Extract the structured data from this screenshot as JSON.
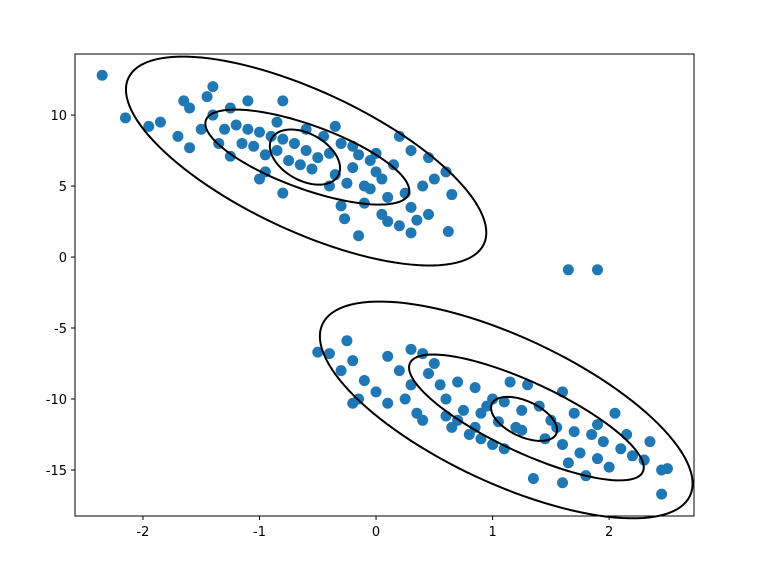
{
  "chart_data": {
    "type": "scatter",
    "xlim": [
      -2.583,
      2.728
    ],
    "ylim": [
      -18.24,
      14.3
    ],
    "xticks": [
      -2,
      -1,
      0,
      1,
      2
    ],
    "yticks": [
      10,
      5,
      0,
      -5,
      -10,
      -15
    ],
    "color": "#1f77b4",
    "x": [
      -2.35,
      -2.15,
      -1.95,
      -1.85,
      -1.6,
      -1.65,
      -1.4,
      -1.45,
      -1.1,
      -0.8,
      -1.5,
      -1.7,
      -1.6,
      -1.25,
      -1.0,
      -0.95,
      -0.8,
      -0.4,
      -0.3,
      -0.27,
      -0.15,
      0.1,
      0.2,
      0.3,
      0.35,
      0.45,
      0.65,
      0.6,
      0.5,
      0.4,
      0.62,
      0.2,
      0.3,
      0.45,
      0.15,
      0.0,
      -0.1,
      -0.2,
      -0.5,
      -0.6,
      -0.7,
      -0.8,
      -0.9,
      -1.0,
      -1.1,
      -1.2,
      -1.3,
      -1.35,
      -1.15,
      -0.95,
      -0.75,
      -0.55,
      -0.35,
      -0.25,
      -0.05,
      0.1,
      0.25,
      -0.45,
      -0.3,
      -0.15,
      -0.05,
      0.05,
      -0.6,
      -0.35,
      -0.85,
      -1.25,
      -1.4,
      -0.65,
      -0.85,
      -1.05,
      -0.4,
      -0.2,
      0.0,
      -0.1,
      0.3,
      0.05,
      1.65,
      1.9,
      -0.5,
      -0.4,
      -0.25,
      -0.2,
      -0.3,
      -0.1,
      -0.15,
      -0.2,
      0.0,
      0.1,
      0.25,
      0.2,
      0.1,
      0.3,
      0.4,
      0.5,
      0.55,
      0.35,
      0.4,
      0.6,
      0.65,
      0.8,
      0.9,
      1.0,
      1.1,
      1.25,
      1.35,
      1.6,
      1.8,
      2.0,
      2.3,
      2.35,
      2.45,
      2.5,
      2.45,
      2.2,
      2.1,
      1.95,
      1.85,
      2.05,
      1.9,
      1.7,
      1.5,
      1.4,
      1.3,
      1.15,
      1.6,
      1.0,
      0.85,
      0.7,
      0.6,
      0.75,
      0.9,
      1.05,
      1.2,
      1.45,
      1.6,
      1.75,
      1.9,
      2.15,
      0.45,
      0.3,
      0.95,
      1.1,
      1.25,
      1.55,
      1.7,
      0.85,
      0.7,
      1.65
    ],
    "y": [
      12.8,
      9.8,
      9.2,
      9.5,
      10.5,
      11.0,
      12.0,
      11.3,
      11.0,
      11.0,
      9.0,
      8.5,
      7.7,
      7.1,
      5.5,
      6.0,
      4.5,
      5.0,
      3.6,
      2.7,
      1.5,
      2.5,
      2.2,
      1.7,
      2.6,
      3.0,
      4.4,
      6.0,
      5.5,
      5.0,
      1.8,
      8.5,
      7.5,
      7.0,
      6.5,
      6.0,
      5.0,
      6.3,
      7.0,
      7.5,
      8.0,
      8.3,
      8.5,
      8.8,
      9.0,
      9.3,
      9.0,
      8.0,
      8.0,
      7.2,
      6.8,
      6.2,
      5.8,
      5.2,
      4.8,
      4.2,
      4.5,
      8.5,
      8.0,
      7.2,
      6.8,
      5.5,
      9.0,
      9.2,
      9.5,
      10.5,
      10.0,
      6.5,
      7.5,
      7.8,
      7.3,
      7.8,
      7.3,
      3.8,
      3.5,
      3.0,
      -0.9,
      -0.9,
      -6.7,
      -6.8,
      -5.9,
      -7.3,
      -8.0,
      -8.7,
      -10.0,
      -10.3,
      -9.5,
      -10.3,
      -10.0,
      -8.0,
      -7.0,
      -6.5,
      -6.8,
      -7.5,
      -9.0,
      -11.0,
      -11.5,
      -11.2,
      -12.0,
      -12.5,
      -12.8,
      -13.2,
      -13.5,
      -12.2,
      -15.6,
      -15.9,
      -15.4,
      -14.8,
      -14.3,
      -13.0,
      -15.0,
      -14.9,
      -16.7,
      -14.0,
      -13.5,
      -13.0,
      -12.5,
      -11.0,
      -11.8,
      -12.3,
      -11.5,
      -10.5,
      -9.0,
      -8.8,
      -9.5,
      -10.0,
      -9.2,
      -8.8,
      -10.0,
      -10.8,
      -11.0,
      -11.6,
      -12.0,
      -12.8,
      -13.2,
      -13.8,
      -14.2,
      -12.5,
      -8.2,
      -9.0,
      -10.5,
      -10.2,
      -10.8,
      -12.0,
      -11.0,
      -12.0,
      -11.5,
      -14.5
    ],
    "ellipses": [
      {
        "color": "#000000",
        "center": [
          -0.61,
          7.04
        ],
        "axis1": [
          0.283,
          -1.338
        ],
        "axis2": [
          -0.103,
          -1.408
        ]
      },
      {
        "color": "#000000",
        "center": [
          -0.59,
          7.04
        ],
        "axis1": [
          0.87,
          -2.6
        ],
        "axis2": [
          -0.093,
          -2.106
        ]
      },
      {
        "color": "#000000",
        "center": [
          -0.6,
          6.76
        ],
        "axis1": [
          1.525,
          -5.85
        ],
        "axis2": [
          -0.254,
          -4.46
        ]
      },
      {
        "color": "#000000",
        "center": [
          1.27,
          -11.4
        ],
        "axis1": [
          0.276,
          -1.056
        ],
        "axis2": [
          -0.064,
          -1.134
        ]
      },
      {
        "color": "#000000",
        "center": [
          1.29,
          -11.3
        ],
        "axis1": [
          0.999,
          -3.83
        ],
        "axis2": [
          -0.127,
          -2.23
        ]
      },
      {
        "color": "#000000",
        "center": [
          1.117,
          -10.77
        ],
        "axis1": [
          1.577,
          -6.04
        ],
        "axis2": [
          -0.265,
          -4.67
        ]
      }
    ]
  }
}
